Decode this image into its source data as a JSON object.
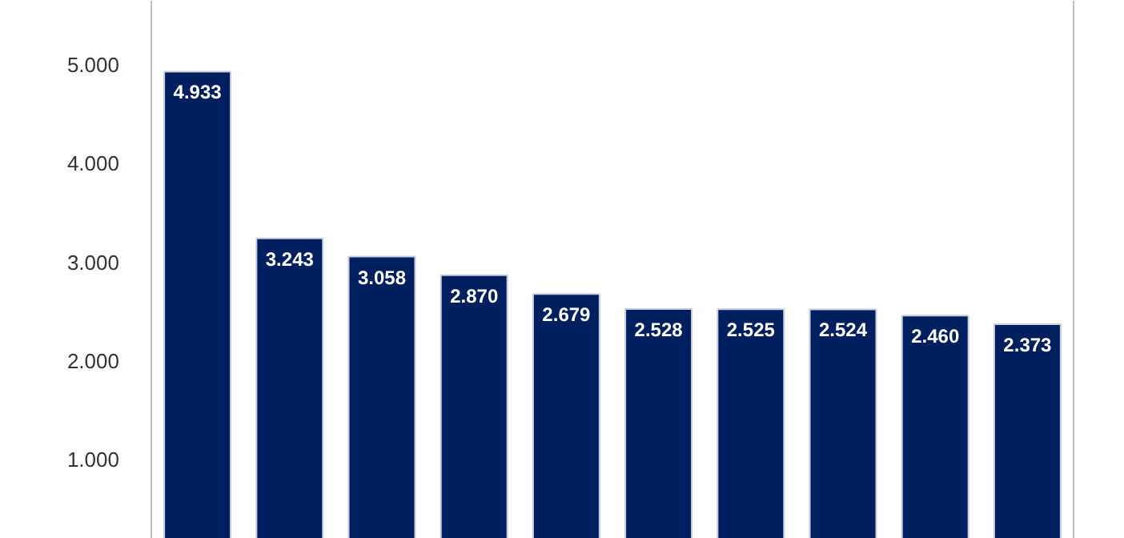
{
  "chart_data": {
    "type": "bar",
    "categories": [
      null,
      null,
      null,
      null,
      null,
      null,
      null,
      null,
      null,
      null
    ],
    "values": [
      4933,
      3243,
      3058,
      2870,
      2679,
      2528,
      2525,
      2524,
      2460,
      2373
    ],
    "value_labels": [
      "4.933",
      "3.243",
      "3.058",
      "2.870",
      "2.679",
      "2.528",
      "2.525",
      "2.524",
      "2.460",
      "2.373"
    ],
    "color": "#001f5f",
    "ylim": [
      200,
      5650
    ],
    "yticks": [
      {
        "value": 1000,
        "label": "1.000"
      },
      {
        "value": 2000,
        "label": "2.000"
      },
      {
        "value": 3000,
        "label": "3.000"
      },
      {
        "value": 4000,
        "label": "4.000"
      },
      {
        "value": 5000,
        "label": "5.000"
      }
    ],
    "grid": false
  }
}
